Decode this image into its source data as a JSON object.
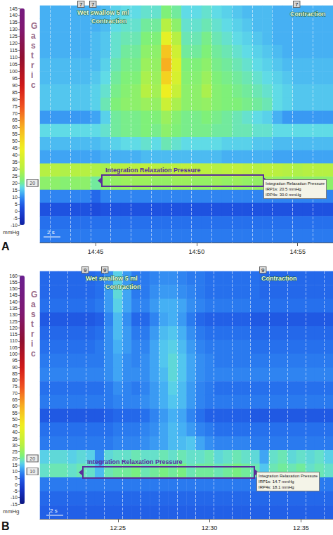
{
  "chart_data": [
    {
      "type": "heatmap",
      "title": "A",
      "categories": [
        null,
        null,
        null,
        null,
        null,
        "14:45",
        null,
        null,
        null,
        null,
        null,
        null,
        null,
        null,
        null,
        "14:50",
        null,
        null,
        null,
        null,
        null,
        null,
        null,
        null,
        null,
        "14:55",
        null,
        null,
        null
      ],
      "cells": [
        [
          13,
          13,
          13,
          13,
          13,
          13,
          14,
          16,
          17,
          17,
          18,
          18,
          22,
          20,
          17,
          17,
          18,
          17,
          16,
          15,
          14,
          14,
          14,
          13,
          13,
          13,
          13,
          13,
          13
        ],
        [
          13,
          13,
          13,
          13,
          13,
          13,
          14,
          17,
          18,
          18,
          20,
          20,
          30,
          24,
          18,
          18,
          19,
          18,
          17,
          16,
          15,
          14,
          14,
          13,
          13,
          13,
          13,
          13,
          13
        ],
        [
          13,
          13,
          13,
          13,
          13,
          14,
          15,
          18,
          19,
          19,
          22,
          22,
          42,
          30,
          19,
          19,
          21,
          19,
          18,
          17,
          16,
          15,
          14,
          13,
          13,
          13,
          13,
          13,
          13
        ],
        [
          13,
          13,
          13,
          13,
          13,
          14,
          15,
          18,
          20,
          20,
          24,
          24,
          55,
          36,
          20,
          20,
          22,
          20,
          19,
          18,
          17,
          16,
          15,
          14,
          13,
          13,
          13,
          13,
          13
        ],
        [
          14,
          14,
          14,
          14,
          14,
          14,
          16,
          19,
          21,
          21,
          26,
          25,
          60,
          40,
          22,
          22,
          24,
          21,
          20,
          19,
          18,
          17,
          16,
          15,
          14,
          14,
          14,
          14,
          14
        ],
        [
          14,
          14,
          14,
          14,
          14,
          15,
          17,
          20,
          22,
          22,
          28,
          26,
          52,
          38,
          23,
          23,
          26,
          22,
          21,
          20,
          19,
          18,
          17,
          16,
          15,
          14,
          14,
          14,
          14
        ],
        [
          15,
          15,
          15,
          15,
          15,
          16,
          18,
          21,
          23,
          24,
          30,
          27,
          45,
          34,
          24,
          24,
          28,
          23,
          22,
          21,
          20,
          19,
          18,
          17,
          16,
          15,
          15,
          15,
          15
        ],
        [
          15,
          15,
          15,
          15,
          15,
          16,
          19,
          22,
          24,
          24,
          26,
          25,
          35,
          28,
          24,
          24,
          25,
          23,
          22,
          22,
          21,
          20,
          19,
          17,
          16,
          15,
          15,
          15,
          15
        ],
        [
          11,
          11,
          11,
          11,
          11,
          12,
          16,
          20,
          21,
          21,
          22,
          22,
          26,
          23,
          21,
          21,
          22,
          21,
          20,
          19,
          18,
          17,
          16,
          13,
          11,
          11,
          11,
          11,
          11
        ],
        [
          17,
          17,
          17,
          17,
          17,
          17,
          18,
          20,
          21,
          21,
          22,
          21,
          24,
          22,
          21,
          21,
          21,
          20,
          20,
          19,
          19,
          18,
          18,
          17,
          17,
          17,
          17,
          17,
          17
        ],
        [
          14,
          14,
          14,
          14,
          14,
          14,
          15,
          16,
          17,
          17,
          18,
          17,
          19,
          18,
          17,
          17,
          17,
          17,
          16,
          16,
          16,
          15,
          15,
          14,
          14,
          14,
          14,
          14,
          14
        ],
        [
          12,
          12,
          12,
          12,
          12,
          12,
          13,
          13,
          13,
          13,
          14,
          14,
          14,
          14,
          14,
          14,
          14,
          14,
          13,
          13,
          13,
          13,
          13,
          12,
          12,
          12,
          12,
          12,
          12
        ],
        [
          30,
          30,
          29,
          30,
          30,
          29,
          28,
          30,
          31,
          31,
          32,
          31,
          30,
          31,
          32,
          31,
          31,
          30,
          31,
          32,
          31,
          30,
          31,
          31,
          30,
          29,
          30,
          30,
          30
        ],
        [
          24,
          24,
          23,
          24,
          24,
          20,
          24,
          25,
          26,
          26,
          26,
          25,
          25,
          26,
          26,
          25,
          25,
          26,
          25,
          26,
          25,
          25,
          26,
          25,
          24,
          24,
          24,
          24,
          24
        ],
        [
          9,
          9,
          9,
          9,
          9,
          6,
          9,
          9,
          9,
          9,
          9,
          9,
          9,
          9,
          9,
          9,
          9,
          9,
          9,
          9,
          9,
          9,
          9,
          9,
          9,
          9,
          9,
          9,
          9
        ],
        [
          3,
          3,
          3,
          3,
          3,
          2,
          3,
          3,
          3,
          3,
          3,
          3,
          3,
          3,
          3,
          3,
          3,
          3,
          3,
          3,
          3,
          3,
          3,
          3,
          3,
          3,
          3,
          3,
          3
        ],
        [
          7,
          7,
          7,
          7,
          7,
          7,
          7,
          7,
          7,
          7,
          7,
          7,
          7,
          7,
          7,
          7,
          7,
          7,
          7,
          7,
          7,
          7,
          7,
          7,
          7,
          7,
          7,
          7,
          7
        ],
        [
          8,
          8,
          8,
          8,
          8,
          8,
          8,
          8,
          8,
          8,
          8,
          8,
          8,
          8,
          8,
          8,
          8,
          8,
          8,
          8,
          8,
          8,
          8,
          8,
          8,
          8,
          8,
          8,
          8
        ]
      ],
      "colorbar": {
        "title": "Gastric",
        "unit": "mmHg",
        "range": [
          -10,
          145
        ],
        "ticks": [
          -10,
          -5,
          0,
          5,
          10,
          15,
          20,
          25,
          30,
          35,
          40,
          45,
          50,
          55,
          60,
          65,
          70,
          75,
          80,
          85,
          90,
          95,
          100,
          105,
          110,
          115,
          120,
          125,
          130,
          135,
          140,
          145
        ],
        "marks": [
          20
        ]
      },
      "annotations": [
        "7",
        "7",
        "Wet swallow 5 ml",
        "Contraction",
        "7",
        "Contraction"
      ],
      "irp": {
        "title": "Integration Relaxation Pressure",
        "values": [
          "IRP1s: 20.5 mmHg",
          "IRP4s: 30.0 mmHg"
        ]
      },
      "scale_bar": "2 s",
      "grid": true,
      "tick_labels": "x"
    },
    {
      "type": "heatmap",
      "title": "B",
      "categories": [
        null,
        null,
        null,
        null,
        null,
        null,
        null,
        null,
        "12:25",
        null,
        null,
        null,
        null,
        null,
        null,
        null,
        null,
        null,
        "12:30",
        null,
        null,
        null,
        null,
        null,
        null,
        null,
        null,
        null,
        "12:35",
        null,
        null,
        null
      ],
      "cells": [
        [
          6,
          6,
          6,
          6,
          6,
          6,
          7,
          10,
          16,
          11,
          8,
          8,
          9,
          10,
          10,
          9,
          8,
          8,
          7,
          7,
          7,
          7,
          7,
          7,
          6,
          6,
          6,
          6,
          6,
          6,
          6,
          6
        ],
        [
          6,
          6,
          6,
          6,
          6,
          6,
          7,
          11,
          17,
          12,
          8,
          8,
          10,
          11,
          11,
          10,
          9,
          8,
          7,
          7,
          7,
          7,
          7,
          7,
          6,
          6,
          6,
          6,
          6,
          6,
          6,
          6
        ],
        [
          7,
          7,
          7,
          7,
          7,
          7,
          8,
          11,
          16,
          12,
          9,
          9,
          11,
          13,
          13,
          12,
          10,
          9,
          8,
          8,
          8,
          8,
          8,
          7,
          7,
          7,
          7,
          7,
          7,
          7,
          7,
          7
        ],
        [
          4,
          4,
          4,
          4,
          4,
          4,
          5,
          9,
          14,
          10,
          6,
          6,
          9,
          12,
          13,
          11,
          8,
          6,
          5,
          5,
          5,
          5,
          5,
          4,
          4,
          4,
          4,
          4,
          4,
          4,
          4,
          4
        ],
        [
          6,
          6,
          6,
          6,
          6,
          6,
          7,
          10,
          14,
          11,
          8,
          8,
          11,
          14,
          15,
          13,
          10,
          8,
          7,
          7,
          7,
          7,
          7,
          6,
          6,
          6,
          6,
          6,
          6,
          6,
          6,
          6
        ],
        [
          7,
          7,
          7,
          7,
          7,
          7,
          8,
          10,
          13,
          11,
          9,
          9,
          12,
          15,
          16,
          14,
          11,
          9,
          8,
          8,
          8,
          8,
          8,
          7,
          7,
          7,
          7,
          7,
          7,
          7,
          7,
          7
        ],
        [
          8,
          8,
          8,
          8,
          8,
          8,
          8,
          10,
          12,
          10,
          9,
          10,
          12,
          15,
          17,
          15,
          12,
          10,
          9,
          8,
          8,
          8,
          8,
          8,
          8,
          8,
          8,
          8,
          8,
          8,
          8,
          8
        ],
        [
          9,
          9,
          9,
          9,
          9,
          9,
          9,
          10,
          12,
          10,
          10,
          10,
          12,
          14,
          17,
          15,
          12,
          10,
          9,
          9,
          9,
          9,
          9,
          9,
          9,
          9,
          9,
          9,
          9,
          9,
          9,
          9
        ],
        [
          7,
          7,
          7,
          7,
          7,
          7,
          7,
          8,
          10,
          9,
          8,
          9,
          11,
          13,
          16,
          14,
          11,
          9,
          8,
          7,
          7,
          7,
          7,
          7,
          7,
          7,
          7,
          7,
          7,
          7,
          7,
          7
        ],
        [
          8,
          8,
          8,
          8,
          8,
          8,
          8,
          8,
          9,
          9,
          9,
          10,
          11,
          13,
          15,
          14,
          11,
          9,
          8,
          8,
          8,
          8,
          8,
          8,
          8,
          8,
          8,
          8,
          8,
          8,
          8,
          8
        ],
        [
          4,
          4,
          4,
          4,
          4,
          4,
          4,
          5,
          6,
          6,
          6,
          7,
          9,
          11,
          13,
          12,
          9,
          7,
          5,
          5,
          5,
          5,
          5,
          4,
          4,
          4,
          4,
          4,
          4,
          4,
          4,
          4
        ],
        [
          7,
          7,
          7,
          7,
          7,
          7,
          7,
          7,
          8,
          8,
          8,
          9,
          10,
          12,
          14,
          13,
          11,
          9,
          8,
          7,
          7,
          7,
          7,
          7,
          7,
          7,
          7,
          7,
          7,
          7,
          7,
          7
        ],
        [
          8,
          8,
          8,
          8,
          8,
          8,
          8,
          8,
          9,
          9,
          9,
          10,
          11,
          12,
          14,
          14,
          15,
          12,
          10,
          9,
          9,
          9,
          9,
          8,
          8,
          8,
          8,
          8,
          8,
          8,
          8,
          8
        ],
        [
          16,
          17,
          17,
          16,
          17,
          16,
          10,
          17,
          18,
          18,
          19,
          18,
          18,
          19,
          18,
          19,
          18,
          18,
          19,
          17,
          18,
          19,
          18,
          17,
          12,
          18,
          19,
          17,
          18,
          17,
          18,
          16
        ],
        [
          18,
          19,
          19,
          18,
          19,
          18,
          14,
          19,
          20,
          20,
          21,
          19,
          20,
          21,
          20,
          21,
          19,
          20,
          20,
          19,
          20,
          21,
          20,
          19,
          15,
          19,
          20,
          19,
          20,
          18,
          19,
          18
        ],
        [
          8,
          8,
          8,
          8,
          8,
          8,
          8,
          8,
          8,
          8,
          8,
          8,
          8,
          8,
          8,
          8,
          8,
          8,
          8,
          8,
          8,
          8,
          8,
          8,
          8,
          8,
          8,
          8,
          8,
          8,
          8,
          8
        ],
        [
          6,
          6,
          6,
          6,
          6,
          6,
          6,
          6,
          6,
          6,
          6,
          6,
          6,
          6,
          6,
          6,
          6,
          6,
          6,
          6,
          6,
          6,
          6,
          6,
          6,
          6,
          6,
          6,
          6,
          6,
          6,
          6
        ],
        [
          5,
          5,
          5,
          5,
          5,
          5,
          5,
          5,
          5,
          5,
          5,
          5,
          5,
          5,
          5,
          5,
          5,
          5,
          5,
          5,
          5,
          5,
          5,
          5,
          5,
          5,
          5,
          5,
          5,
          5,
          5,
          5
        ]
      ],
      "colorbar": {
        "title": "Gastric",
        "unit": "mmHg",
        "range": [
          -15,
          160
        ],
        "ticks": [
          -15,
          -10,
          -5,
          0,
          5,
          10,
          15,
          20,
          25,
          30,
          35,
          40,
          45,
          50,
          55,
          60,
          65,
          70,
          75,
          80,
          85,
          90,
          95,
          100,
          105,
          110,
          115,
          120,
          125,
          130,
          135,
          140,
          145,
          150,
          155,
          160
        ],
        "marks": [
          20,
          10
        ]
      },
      "annotations": [
        "9",
        "9",
        "Wet swallow 5 ml",
        "Contraction",
        "9",
        "Contraction"
      ],
      "irp": {
        "title": "Integration Relaxation Pressure",
        "values": [
          "IRP1s: 14.7 mmHg",
          "IRP4s: 18.1 mmHg"
        ]
      },
      "scale_bar": "2 s",
      "grid": true,
      "tick_labels": "x"
    }
  ]
}
